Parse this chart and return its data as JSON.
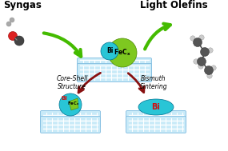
{
  "bg_color": "#ffffff",
  "syngas_label": "Syngas",
  "light_olefins_label": "Light Olefins",
  "core_shell_label": "Core-Shell\nStructure",
  "bismuth_sintering_label": "Bismuth\nSintering",
  "bi_color": "#29c5d6",
  "fecx_color": "#7ec820",
  "bi_label_color": "#cc1111",
  "arrow_green": "#44bb00",
  "arrow_red": "#881111",
  "support_color_light": "#c8eaf8",
  "support_color_dark": "#a0d4f0",
  "support_line": "#80bce0",
  "atom_co_color": "#dd2222",
  "atom_c_dark": "#444444",
  "atom_c_light": "#aaaaaa",
  "molecule_color": "#555555",
  "molecule_light": "#cccccc"
}
